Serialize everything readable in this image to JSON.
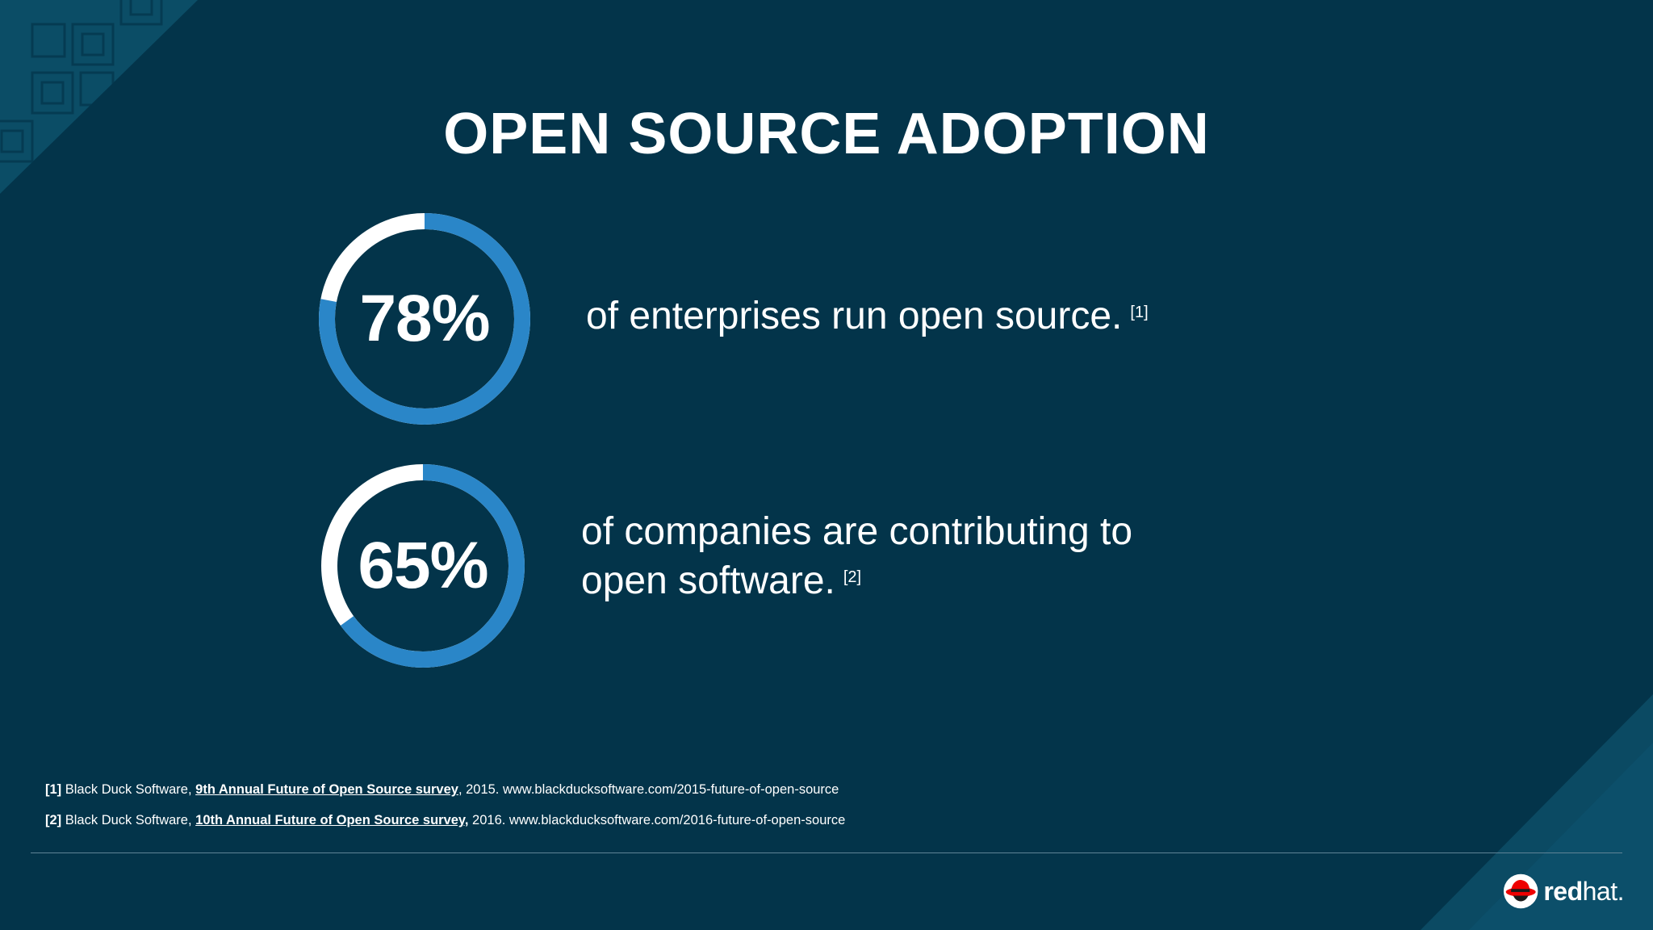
{
  "slide": {
    "title": "OPEN SOURCE ADOPTION",
    "colors": {
      "background": "#03344a",
      "accent_blue": "#2a86c8",
      "ring_remainder": "#ffffff",
      "text": "#ffffff",
      "logo_red": "#ee0000"
    }
  },
  "stats": [
    {
      "percent": 78,
      "value_label": "78%",
      "line1": "of enterprises run open source.",
      "line2": "",
      "ref": "[1]"
    },
    {
      "percent": 65,
      "value_label": "65%",
      "line1": "of companies are contributing to",
      "line2": "open software.",
      "ref": "[2]"
    }
  ],
  "footnotes": [
    {
      "tag": "[1]",
      "prefix": " Black Duck Software, ",
      "link": "9th Annual Future of Open Source survey",
      "suffix": ", 2015. www.blackducksoftware.com/2015-future-of-open-source"
    },
    {
      "tag": "[2]",
      "prefix": " Black Duck Software, ",
      "link": "10th Annual Future of Open Source survey,",
      "suffix": " 2016. www.blackducksoftware.com/2016-future-of-open-source"
    }
  ],
  "logo": {
    "icon": "red-hat-shadowman-icon",
    "bold": "red",
    "light": "hat."
  }
}
